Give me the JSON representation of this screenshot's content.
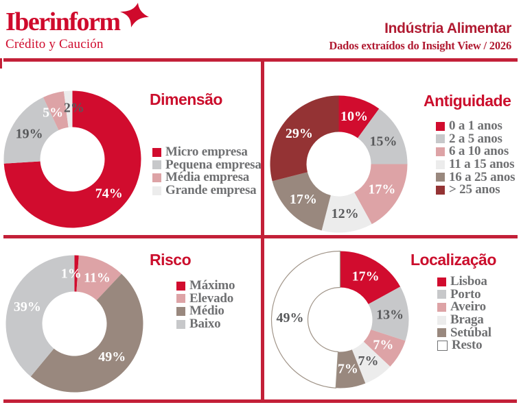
{
  "header": {
    "logo": {
      "brand": "Iberinform",
      "tagline": "Crédito y Caución"
    },
    "title": "Indústria Alimentar",
    "subtitle": "Dados extraídos do Insight View / 2026"
  },
  "colors": {
    "brand_red": "#cf0a2c",
    "chart_red": "#d10c2e",
    "line_red": "#c32038",
    "header_text_red": "#b01a31",
    "title_red": "#cb0e2c",
    "gray": "#c7c8ca",
    "pink": "#dda3a6",
    "lightgray": "#ececec",
    "taupe": "#99887e",
    "brick": "#943334",
    "legend_text": "#6f7072",
    "label_dark": "#58595b",
    "resto_outline": "#a09488"
  },
  "chart_data": [
    {
      "type": "pie",
      "donut": true,
      "title": "Dimensão",
      "legend_position": "right",
      "value_suffix": "%",
      "segments": [
        {
          "label": "Micro empresa",
          "value": 74,
          "color": "#d10c2e",
          "label_color": "#ffffff"
        },
        {
          "label": "Pequena empresa",
          "value": 19,
          "color": "#c7c8ca",
          "label_color": "#58595b"
        },
        {
          "label": "Média empresa",
          "value": 5,
          "color": "#dda3a6",
          "label_color": "#ffffff",
          "label_dx": -8,
          "label_dy": 2
        },
        {
          "label": "Grande empresa",
          "value": 2,
          "color": "#ececec",
          "label_color": "#58595b",
          "label_dx": 7,
          "label_dy": -2
        }
      ]
    },
    {
      "type": "pie",
      "donut": true,
      "title": "Antiguidade",
      "legend_position": "right",
      "value_suffix": "%",
      "segments": [
        {
          "label": "0 a 1 anos",
          "value": 10,
          "color": "#d10c2e",
          "label_color": "#ffffff"
        },
        {
          "label": "2 a 5 anos",
          "value": 15,
          "color": "#c7c8ca",
          "label_color": "#58595b"
        },
        {
          "label": "6 a 10 anos",
          "value": 17,
          "color": "#dda3a6",
          "label_color": "#ffffff"
        },
        {
          "label": "11 a 15 anos",
          "value": 12,
          "color": "#ececec",
          "label_color": "#58595b"
        },
        {
          "label": "16 a 25 anos",
          "value": 17,
          "color": "#99887e",
          "label_color": "#ffffff"
        },
        {
          "label": "> 25 anos",
          "value": 29,
          "color": "#943334",
          "label_color": "#ffffff"
        }
      ]
    },
    {
      "type": "pie",
      "donut": true,
      "title": "Risco",
      "legend_position": "right",
      "value_suffix": "%",
      "segments": [
        {
          "label": "Máximo",
          "value": 1,
          "color": "#d10c2e",
          "label_color": "#ffffff",
          "label_dx": -7
        },
        {
          "label": "Elevado",
          "value": 11,
          "color": "#dda3a6",
          "label_color": "#ffffff",
          "label_dx": 4
        },
        {
          "label": "Médio",
          "value": 49,
          "color": "#99887e",
          "label_color": "#ffffff"
        },
        {
          "label": "Baixo",
          "value": 39,
          "color": "#c7c8ca",
          "label_color": "#ffffff"
        }
      ]
    },
    {
      "type": "pie",
      "donut": true,
      "title": "Localização",
      "legend_position": "right",
      "value_suffix": "%",
      "segments": [
        {
          "label": "Lisboa",
          "value": 17,
          "color": "#d10c2e",
          "label_color": "#ffffff"
        },
        {
          "label": "Porto",
          "value": 13,
          "color": "#c7c8ca",
          "label_color": "#58595b"
        },
        {
          "label": "Aveiro",
          "value": 7,
          "color": "#dda3a6",
          "label_color": "#ffffff"
        },
        {
          "label": "Braga",
          "value": 7,
          "color": "#ececec",
          "label_color": "#58595b"
        },
        {
          "label": "Setúbal",
          "value": 7,
          "color": "#99887e",
          "label_color": "#ffffff"
        },
        {
          "label": "Resto",
          "value": 49,
          "color": "#ffffff",
          "label_color": "#58595b",
          "outline": "#a09488",
          "swatch_border": "#6f7072"
        }
      ]
    }
  ]
}
